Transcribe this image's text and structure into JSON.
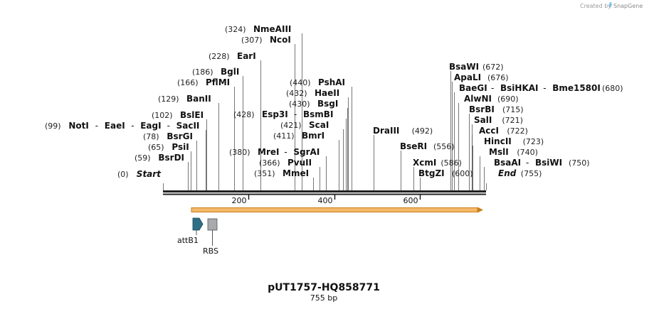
{
  "branding": {
    "created_by": "Created by",
    "product": "SnapGene"
  },
  "sequence": {
    "name": "pUT1757-HQ858771",
    "length_label": "755 bp",
    "length": 755
  },
  "scale": {
    "ticks": [
      {
        "value": 200,
        "label": "200"
      },
      {
        "value": 400,
        "label": "400"
      },
      {
        "value": 600,
        "label": "600"
      }
    ]
  },
  "enzyme_rows": [
    {
      "pos_label": "(0)",
      "pos": 0,
      "names": [
        "Start"
      ],
      "italic": true
    },
    {
      "pos_label": "(59)",
      "pos": 59,
      "names": [
        "BsrDI"
      ]
    },
    {
      "pos_label": "(65)",
      "pos": 65,
      "names": [
        "PsiI"
      ]
    },
    {
      "pos_label": "(78)",
      "pos": 78,
      "names": [
        "BsrGI"
      ]
    },
    {
      "pos_label": "(99)",
      "pos": 99,
      "names": [
        "NotI",
        "EaeI",
        "EagI",
        "SacII"
      ]
    },
    {
      "pos_label": "(102)",
      "pos": 102,
      "names": [
        "BslEI"
      ]
    },
    {
      "pos_label": "(129)",
      "pos": 129,
      "names": [
        "BanII"
      ]
    },
    {
      "pos_label": "(166)",
      "pos": 166,
      "names": [
        "PflMI"
      ]
    },
    {
      "pos_label": "(186)",
      "pos": 186,
      "names": [
        "BglI"
      ]
    },
    {
      "pos_label": "(228)",
      "pos": 228,
      "names": [
        "EarI"
      ]
    },
    {
      "pos_label": "(307)",
      "pos": 307,
      "names": [
        "NcoI"
      ]
    },
    {
      "pos_label": "(324)",
      "pos": 324,
      "names": [
        "NmeAIII"
      ]
    },
    {
      "pos_label": "(351)",
      "pos": 351,
      "names": [
        "MmeI"
      ]
    },
    {
      "pos_label": "(366)",
      "pos": 366,
      "names": [
        "PvuII"
      ]
    },
    {
      "pos_label": "(380)",
      "pos": 380,
      "names": [
        "MreI",
        "SgrAI"
      ]
    },
    {
      "pos_label": "(411)",
      "pos": 411,
      "names": [
        "BmrI"
      ]
    },
    {
      "pos_label": "(421)",
      "pos": 421,
      "names": [
        "ScaI"
      ]
    },
    {
      "pos_label": "(428)",
      "pos": 428,
      "names": [
        "Esp3I",
        "BsmBI"
      ]
    },
    {
      "pos_label": "(430)",
      "pos": 430,
      "names": [
        "BsgI"
      ]
    },
    {
      "pos_label": "(432)",
      "pos": 432,
      "names": [
        "HaeII"
      ]
    },
    {
      "pos_label": "(440)",
      "pos": 440,
      "names": [
        "PshAI"
      ]
    },
    {
      "pos_label": "(492)",
      "pos": 492,
      "names": [
        "DraIII"
      ]
    },
    {
      "pos_label": "(556)",
      "pos": 556,
      "names": [
        "BseRI"
      ]
    },
    {
      "pos_label": "(586)",
      "pos": 586,
      "names": [
        "XcmI"
      ]
    },
    {
      "pos_label": "(600)",
      "pos": 600,
      "names": [
        "BtgZI"
      ]
    },
    {
      "pos_label": "(672)",
      "pos": 672,
      "names": [
        "BsaWI"
      ]
    },
    {
      "pos_label": "(676)",
      "pos": 676,
      "names": [
        "ApaLI"
      ]
    },
    {
      "pos_label": "(680)",
      "pos": 680,
      "names": [
        "BaeGI",
        "BsiHKAI",
        "Bme1580I"
      ]
    },
    {
      "pos_label": "(690)",
      "pos": 690,
      "names": [
        "AlwNI"
      ]
    },
    {
      "pos_label": "(715)",
      "pos": 715,
      "names": [
        "BsrBI"
      ]
    },
    {
      "pos_label": "(721)",
      "pos": 721,
      "names": [
        "SalI"
      ]
    },
    {
      "pos_label": "(722)",
      "pos": 722,
      "names": [
        "AccI"
      ]
    },
    {
      "pos_label": "(723)",
      "pos": 723,
      "names": [
        "HincII"
      ]
    },
    {
      "pos_label": "(740)",
      "pos": 740,
      "names": [
        "MslI"
      ]
    },
    {
      "pos_label": "(750)",
      "pos": 750,
      "names": [
        "BsaAI",
        "BsiWI"
      ]
    },
    {
      "pos_label": "(755)",
      "pos": 755,
      "names": [
        "End"
      ],
      "italic": true
    }
  ],
  "features": [
    {
      "name": "attB1",
      "type": "arrow",
      "color": "#2e6f86"
    },
    {
      "name": "RBS",
      "type": "box",
      "color": "#a7a9ac"
    }
  ],
  "colors": {
    "arrow_fill": "#f4b86a",
    "arrow_stroke": "#c77f1a",
    "backbone": "#222222",
    "cut_line": "#555555"
  }
}
